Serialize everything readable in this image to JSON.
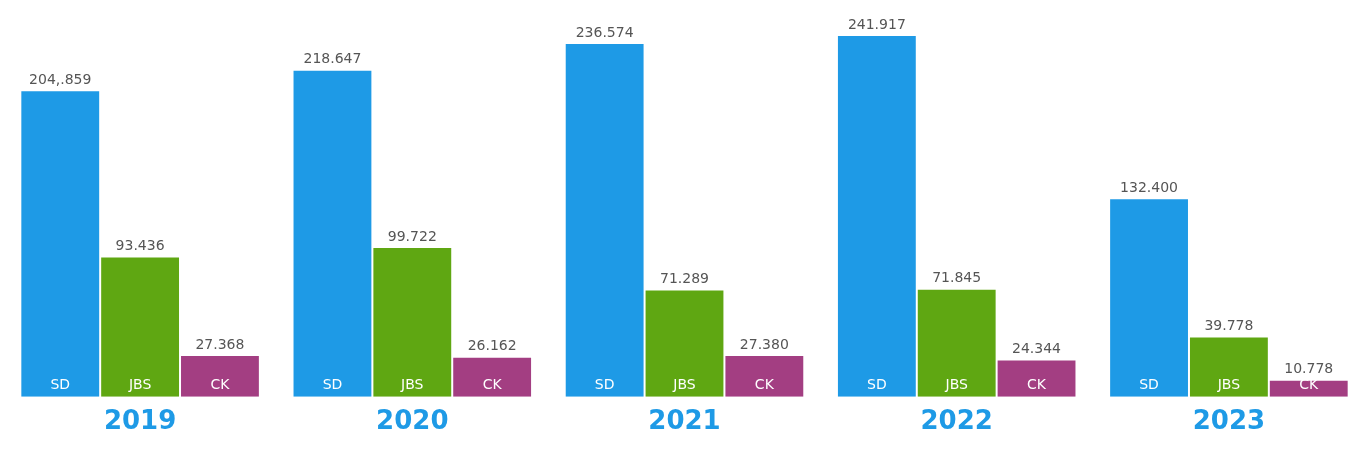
{
  "chart_data": {
    "type": "bar",
    "categories": [
      "2019",
      "2020",
      "2021",
      "2022",
      "2023"
    ],
    "series": [
      {
        "name": "SD",
        "color": "#1e9ae6",
        "values": [
          204.859,
          218.647,
          236.574,
          241.917,
          132.4
        ],
        "value_labels": [
          "204,.859",
          "218.647",
          "236.574",
          "241.917",
          "132.400"
        ]
      },
      {
        "name": "JBS",
        "color": "#5fa712",
        "values": [
          93.436,
          99.722,
          71.289,
          71.845,
          39.778
        ],
        "value_labels": [
          "93.436",
          "99.722",
          "71.289",
          "71.845",
          "39.778"
        ]
      },
      {
        "name": "CK",
        "color": "#a33e82",
        "values": [
          27.368,
          26.162,
          27.38,
          24.344,
          10.778
        ],
        "value_labels": [
          "27.368",
          "26.162",
          "27.380",
          "24.344",
          "10.778"
        ]
      }
    ],
    "grid": false,
    "legend": false
  }
}
